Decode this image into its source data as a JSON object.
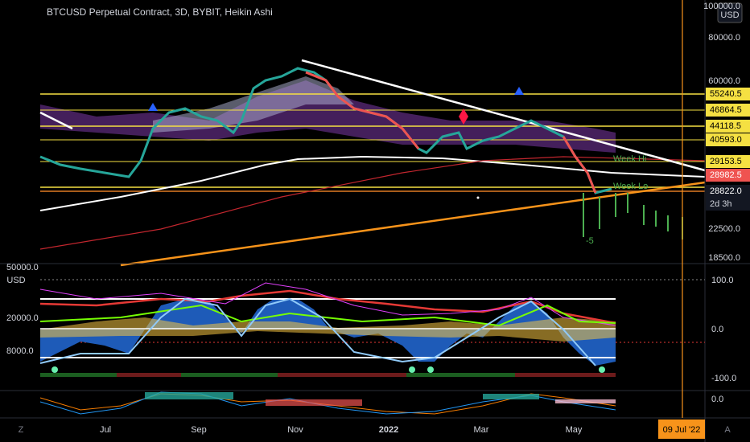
{
  "header": {
    "title": "BTCUSD Perpetual Contract, 3D, BYBIT, Heikin Ashi",
    "currency": "USD"
  },
  "price_axis": {
    "labels": [
      "100000.0",
      "80000.0",
      "60000.0",
      "22500.0",
      "18500.0"
    ],
    "tags": [
      "55240.5",
      "46864.5",
      "44118.5",
      "40593.0",
      "29153.5",
      "28982.5",
      "28822.0"
    ],
    "countdown": "2d 3h"
  },
  "chart_labels": {
    "week_hi": "Week Hi",
    "week_lo": "Week Lo",
    "marker": "-5"
  },
  "oscillator": {
    "left_labels": [
      "50000.0",
      "USD",
      "20000.0",
      "8000.0"
    ],
    "right_labels": [
      "100.0",
      "0.0",
      "-100.0"
    ]
  },
  "macd": {
    "right_labels": [
      "0.0"
    ]
  },
  "time_axis": {
    "labels": [
      "Jul",
      "Sep",
      "Nov",
      "2022",
      "Mar",
      "May"
    ],
    "cursor": "09 Jul '22"
  },
  "corners": {
    "left": "Z",
    "right": "A"
  }
}
